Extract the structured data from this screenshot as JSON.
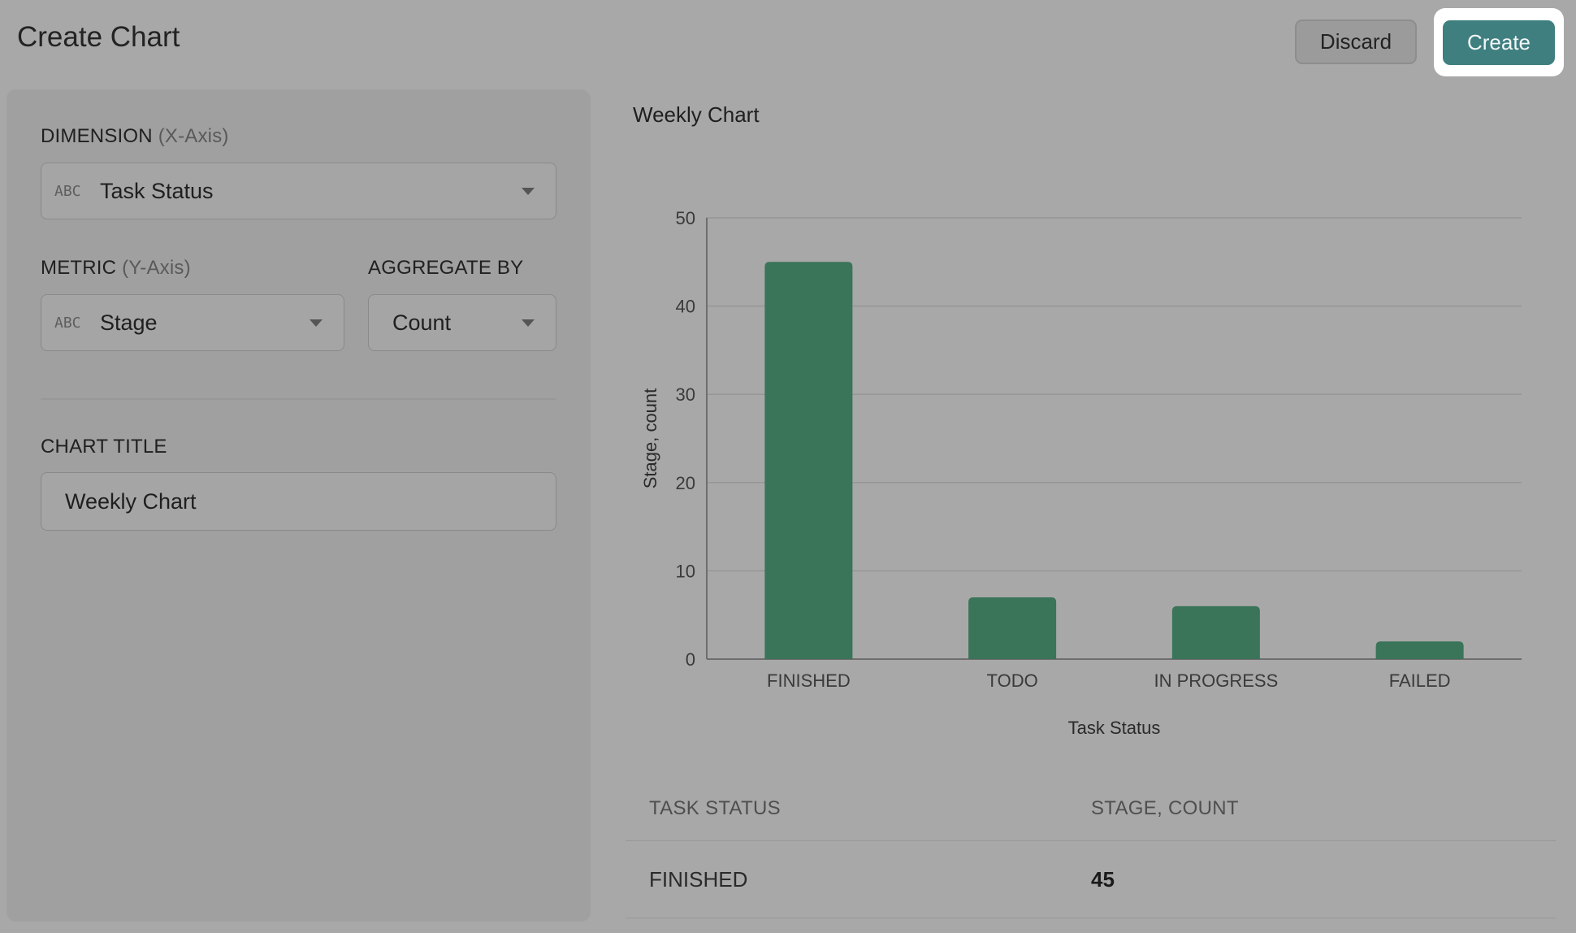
{
  "header": {
    "title": "Create Chart",
    "discard_label": "Discard",
    "create_label": "Create"
  },
  "config": {
    "dimension": {
      "label": "DIMENSION",
      "hint": "(X-Axis)",
      "type_badge": "ABC",
      "value": "Task Status"
    },
    "metric": {
      "label": "METRIC",
      "hint": "(Y-Axis)",
      "type_badge": "ABC",
      "value": "Stage"
    },
    "aggregate": {
      "label": "AGGREGATE BY",
      "value": "Count"
    },
    "chart_title": {
      "label": "CHART TITLE",
      "value": "Weekly Chart"
    }
  },
  "colors": {
    "bar": "#3a7459",
    "accent": "#3f7f80"
  },
  "chart_data": {
    "type": "bar",
    "title": "Weekly Chart",
    "xlabel": "Task Status",
    "ylabel": "Stage, count",
    "categories": [
      "FINISHED",
      "TODO",
      "IN PROGRESS",
      "FAILED"
    ],
    "values": [
      45,
      7,
      6,
      2
    ],
    "ylim": [
      0,
      50
    ],
    "yticks": [
      0,
      10,
      20,
      30,
      40,
      50
    ],
    "grid": true
  },
  "table": {
    "headers": [
      "TASK STATUS",
      "STAGE, COUNT"
    ],
    "rows": [
      {
        "status": "FINISHED",
        "count": "45"
      }
    ]
  }
}
